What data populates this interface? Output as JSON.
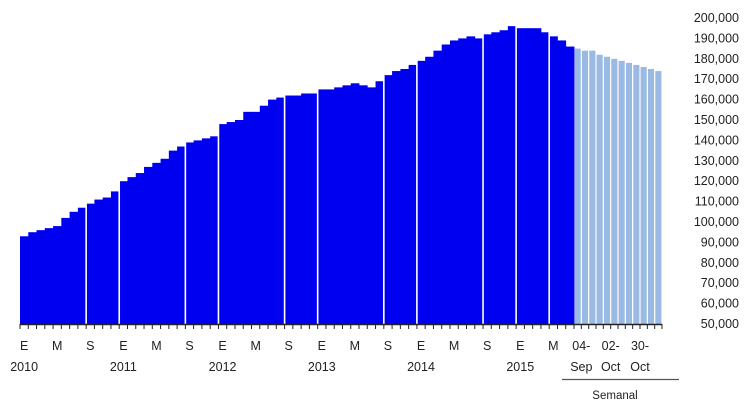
{
  "chart_data": {
    "type": "bar",
    "title": "",
    "xlabel": "",
    "ylabel": "",
    "ylim": [
      50000,
      200000
    ],
    "y_ticks": [
      50000,
      60000,
      70000,
      80000,
      90000,
      100000,
      110000,
      120000,
      130000,
      140000,
      150000,
      160000,
      170000,
      180000,
      190000,
      200000
    ],
    "y_tick_labels": [
      "50,000",
      "60,000",
      "70,000",
      "80,000",
      "90,000",
      "100,000",
      "110,000",
      "120,000",
      "130,000",
      "140,000",
      "150,000",
      "160,000",
      "170,000",
      "180,000",
      "190,000",
      "200,000"
    ],
    "grid": false,
    "legend": "none",
    "colors": {
      "monthly": "#0000f0",
      "weekly": "#9ab9e3",
      "axis": "#222222",
      "separator": "#ffffff"
    },
    "monthly_values": [
      93000,
      95000,
      96000,
      97000,
      98000,
      102000,
      105000,
      107000,
      109000,
      111000,
      112000,
      115000,
      120000,
      122000,
      124000,
      127000,
      129000,
      131000,
      135000,
      137000,
      139000,
      140000,
      141000,
      142000,
      148000,
      149000,
      150000,
      154000,
      154000,
      157000,
      160000,
      161000,
      162000,
      162000,
      163000,
      163000,
      165000,
      165000,
      166000,
      167000,
      168000,
      167000,
      166000,
      169000,
      172000,
      174000,
      175000,
      177000,
      179000,
      181000,
      184000,
      187000,
      189000,
      190000,
      191000,
      190000,
      192000,
      193000,
      194000,
      196000,
      195000,
      195000,
      195000,
      193000,
      191000,
      189000,
      186000
    ],
    "weekly_values": [
      185000,
      184000,
      184000,
      182000,
      181000,
      180000,
      179000,
      178000,
      177000,
      176000,
      175000,
      174000
    ],
    "separator_after_bars": [
      8,
      12,
      20,
      24,
      32,
      36,
      44,
      48,
      56,
      60,
      64
    ],
    "x_ticks_monthly": [
      {
        "bar": 0,
        "label": "E"
      },
      {
        "bar": 4,
        "label": "M"
      },
      {
        "bar": 8,
        "label": "S"
      },
      {
        "bar": 12,
        "label": "E"
      },
      {
        "bar": 16,
        "label": "M"
      },
      {
        "bar": 20,
        "label": "S"
      },
      {
        "bar": 24,
        "label": "E"
      },
      {
        "bar": 28,
        "label": "M"
      },
      {
        "bar": 32,
        "label": "S"
      },
      {
        "bar": 36,
        "label": "E"
      },
      {
        "bar": 40,
        "label": "M"
      },
      {
        "bar": 44,
        "label": "S"
      },
      {
        "bar": 48,
        "label": "E"
      },
      {
        "bar": 52,
        "label": "M"
      },
      {
        "bar": 56,
        "label": "S"
      },
      {
        "bar": 60,
        "label": "E"
      },
      {
        "bar": 64,
        "label": "M"
      }
    ],
    "x_ticks_weekly": [
      {
        "bar": 0,
        "line1": "04-",
        "line2": "Sep"
      },
      {
        "bar": 4,
        "line1": "02-",
        "line2": "Oct"
      },
      {
        "bar": 8,
        "line1": "30-",
        "line2": "Oct"
      }
    ],
    "years": [
      {
        "bar": 0,
        "label": "2010"
      },
      {
        "bar": 12,
        "label": "2011"
      },
      {
        "bar": 24,
        "label": "2012"
      },
      {
        "bar": 36,
        "label": "2013"
      },
      {
        "bar": 48,
        "label": "2014"
      },
      {
        "bar": 60,
        "label": "2015"
      }
    ],
    "weekly_group_label": "Semanal"
  }
}
